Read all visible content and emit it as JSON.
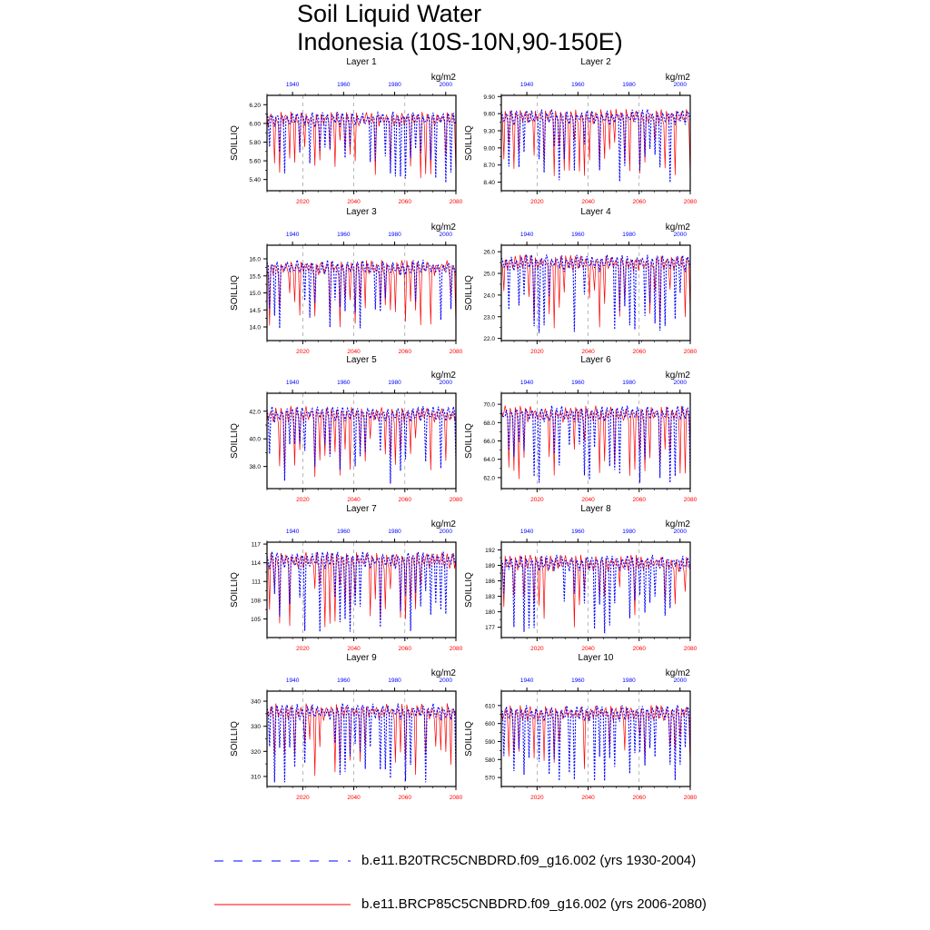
{
  "figure": {
    "title_line1": "Soil Liquid Water",
    "title_line2": "Indonesia (10S-10N,90-150E)"
  },
  "legend": [
    {
      "label": "b.e11.B20TRC5CNBDRD.f09_g16.002 (yrs 1930-2004)",
      "color": "#0000ff",
      "style": "dashed"
    },
    {
      "label": "b.e11.BRCP85C5CNBDRD.f09_g16.002 (yrs 2006-2080)",
      "color": "#ff0000",
      "style": "solid"
    }
  ],
  "colors": {
    "historical": "#0000ff",
    "future": "#ff0000"
  },
  "chart_data": [
    {
      "type": "line",
      "title": "Layer 1",
      "ylabel": "SOILLIQ",
      "units": "kg/m2",
      "ylim": [
        5.28,
        6.3
      ],
      "yticks": [
        5.4,
        5.6,
        5.8,
        6.0,
        6.2
      ],
      "ytick_labels": [
        "5.40",
        "5.60",
        "5.80",
        "6.00",
        "6.20"
      ],
      "xlim_bottom": [
        2006,
        2080
      ],
      "xticks_bottom": [
        2020,
        2040,
        2060,
        2080
      ],
      "xlim_top": [
        1930,
        2004
      ],
      "xticks_top": [
        1940,
        1960,
        1980,
        2000
      ],
      "mean": 6.05,
      "low": 5.4
    },
    {
      "type": "line",
      "title": "Layer 2",
      "ylabel": "SOILLIQ",
      "units": "kg/m2",
      "ylim": [
        8.25,
        9.92
      ],
      "yticks": [
        8.4,
        8.7,
        9.0,
        9.3,
        9.6,
        9.9
      ],
      "ytick_labels": [
        "8.40",
        "8.70",
        "9.00",
        "9.30",
        "9.60",
        "9.90"
      ],
      "xlim_bottom": [
        2006,
        2080
      ],
      "xticks_bottom": [
        2020,
        2040,
        2060,
        2080
      ],
      "xlim_top": [
        1930,
        2004
      ],
      "xticks_top": [
        1940,
        1960,
        1980,
        2000
      ],
      "mean": 9.55,
      "low": 8.45
    },
    {
      "type": "line",
      "title": "Layer 3",
      "ylabel": "SOILLIQ",
      "units": "kg/m2",
      "ylim": [
        13.6,
        16.4
      ],
      "yticks": [
        14.0,
        14.5,
        15.0,
        15.5,
        16.0
      ],
      "ytick_labels": [
        "14.0",
        "14.5",
        "15.0",
        "15.5",
        "16.0"
      ],
      "xlim_bottom": [
        2006,
        2080
      ],
      "xticks_bottom": [
        2020,
        2040,
        2060,
        2080
      ],
      "xlim_top": [
        1930,
        2004
      ],
      "xticks_top": [
        1940,
        1960,
        1980,
        2000
      ],
      "mean": 15.75,
      "low": 13.9
    },
    {
      "type": "line",
      "title": "Layer 4",
      "ylabel": "SOILLIQ",
      "units": "kg/m2",
      "ylim": [
        21.9,
        26.3
      ],
      "yticks": [
        22.0,
        23.0,
        24.0,
        25.0,
        26.0
      ],
      "ytick_labels": [
        "22.0",
        "23.0",
        "24.0",
        "25.0",
        "26.0"
      ],
      "xlim_bottom": [
        2006,
        2080
      ],
      "xticks_bottom": [
        2020,
        2040,
        2060,
        2080
      ],
      "xlim_top": [
        1930,
        2004
      ],
      "xticks_top": [
        1940,
        1960,
        1980,
        2000
      ],
      "mean": 25.5,
      "low": 22.4
    },
    {
      "type": "line",
      "title": "Layer 5",
      "ylabel": "SOILLIQ",
      "units": "kg/m2",
      "ylim": [
        36.4,
        43.3
      ],
      "yticks": [
        38.0,
        40.0,
        42.0
      ],
      "ytick_labels": [
        "38.0",
        "40.0",
        "42.0"
      ],
      "xlim_bottom": [
        2006,
        2080
      ],
      "xticks_bottom": [
        2020,
        2040,
        2060,
        2080
      ],
      "xlim_top": [
        1930,
        2004
      ],
      "xticks_top": [
        1940,
        1960,
        1980,
        2000
      ],
      "mean": 41.8,
      "low": 37.0
    },
    {
      "type": "line",
      "title": "Layer 6",
      "ylabel": "SOILLIQ",
      "units": "kg/m2",
      "ylim": [
        60.8,
        71.2
      ],
      "yticks": [
        62.0,
        64.0,
        66.0,
        68.0,
        70.0
      ],
      "ytick_labels": [
        "62.0",
        "64.0",
        "66.0",
        "68.0",
        "70.0"
      ],
      "xlim_bottom": [
        2006,
        2080
      ],
      "xticks_bottom": [
        2020,
        2040,
        2060,
        2080
      ],
      "xlim_top": [
        1930,
        2004
      ],
      "xticks_top": [
        1940,
        1960,
        1980,
        2000
      ],
      "mean": 69.0,
      "low": 61.8
    },
    {
      "type": "line",
      "title": "Layer 7",
      "ylabel": "SOILLIQ",
      "units": "kg/m2",
      "ylim": [
        102.0,
        117.3
      ],
      "yticks": [
        105,
        108,
        111,
        114,
        117
      ],
      "ytick_labels": [
        "105",
        "108",
        "111",
        "114",
        "117"
      ],
      "xlim_bottom": [
        2006,
        2080
      ],
      "xticks_bottom": [
        2020,
        2040,
        2060,
        2080
      ],
      "xlim_top": [
        1930,
        2004
      ],
      "xticks_top": [
        1940,
        1960,
        1980,
        2000
      ],
      "mean": 114.5,
      "low": 103.5
    },
    {
      "type": "line",
      "title": "Layer 8",
      "ylabel": "SOILLIQ",
      "units": "kg/m2",
      "ylim": [
        175.0,
        193.5
      ],
      "yticks": [
        177,
        180,
        183,
        186,
        189,
        192
      ],
      "ytick_labels": [
        "177",
        "180",
        "183",
        "186",
        "189",
        "192"
      ],
      "xlim_bottom": [
        2006,
        2080
      ],
      "xticks_bottom": [
        2020,
        2040,
        2060,
        2080
      ],
      "xlim_top": [
        1930,
        2004
      ],
      "xticks_top": [
        1940,
        1960,
        1980,
        2000
      ],
      "mean": 189.5,
      "low": 176.5
    },
    {
      "type": "line",
      "title": "Layer 9",
      "ylabel": "SOILLIQ",
      "units": "kg/m2",
      "ylim": [
        306.0,
        344.0
      ],
      "yticks": [
        310,
        320,
        330,
        340
      ],
      "ytick_labels": [
        "310",
        "320",
        "330",
        "340"
      ],
      "xlim_bottom": [
        2006,
        2080
      ],
      "xticks_bottom": [
        2020,
        2040,
        2060,
        2080
      ],
      "xlim_top": [
        1930,
        2004
      ],
      "xticks_top": [
        1940,
        1960,
        1980,
        2000
      ],
      "mean": 336.0,
      "low": 309.0
    },
    {
      "type": "line",
      "title": "Layer 10",
      "ylabel": "SOILLIQ",
      "units": "kg/m2",
      "ylim": [
        565.0,
        618.0
      ],
      "yticks": [
        570,
        580,
        590,
        600,
        610
      ],
      "ytick_labels": [
        "570",
        "580",
        "590",
        "600",
        "610"
      ],
      "xlim_bottom": [
        2006,
        2080
      ],
      "xticks_bottom": [
        2020,
        2040,
        2060,
        2080
      ],
      "xlim_top": [
        1930,
        2004
      ],
      "xticks_top": [
        1940,
        1960,
        1980,
        2000
      ],
      "mean": 606.0,
      "low": 570.0
    }
  ]
}
